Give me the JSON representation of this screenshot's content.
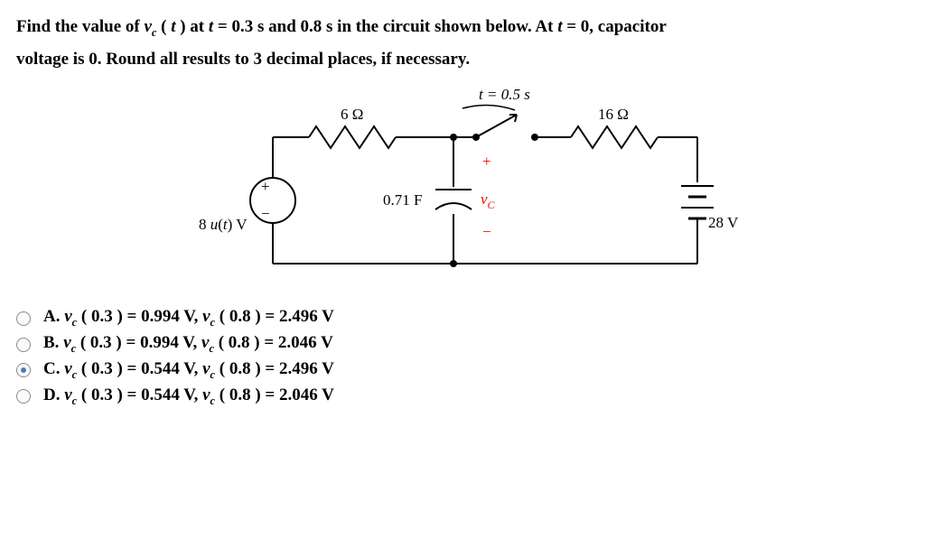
{
  "question": {
    "line1_pre": "Find the value of ",
    "vc_var": "v",
    "vc_sub": "c",
    "line1_mid": " ( ",
    "t_var": "t",
    "line1_post": " ) at ",
    "t_eq": "t",
    "line1_vals": " = 0.3 s and 0.8 s in the circuit shown below. At ",
    "t_eq2": "t",
    "line1_end": " = 0, capacitor",
    "line2": "voltage is 0. Round all results to 3 decimal places, if necessary."
  },
  "circuit": {
    "switch_time": "t = 0.5 s",
    "r1": "6 Ω",
    "r2": "16 Ω",
    "cap": "0.71 F",
    "vc_label_v": "v",
    "vc_label_c": "C",
    "plus": "+",
    "minus": "−",
    "src_left": "8 u(t) V",
    "src_right": "28 V",
    "colors": {
      "stroke": "#000000",
      "bg": "#ffffff"
    }
  },
  "answers": {
    "items": [
      {
        "key": "A",
        "text": "A.  v_c ( 0.3 ) = 0.994 V,  v_c ( 0.8 ) = 2.496 V",
        "selected": false
      },
      {
        "key": "B",
        "text": "B.  v_c ( 0.3 ) = 0.994 V,  v_c ( 0.8 ) = 2.046 V",
        "selected": false
      },
      {
        "key": "C",
        "text": "C.  v_c ( 0.3 ) = 0.544 V,  v_c ( 0.8 ) = 2.496 V",
        "selected": true
      },
      {
        "key": "D",
        "text": "D.  v_c ( 0.3 ) = 0.544 V,  v_c ( 0.8 ) = 2.046 V",
        "selected": false
      }
    ]
  }
}
